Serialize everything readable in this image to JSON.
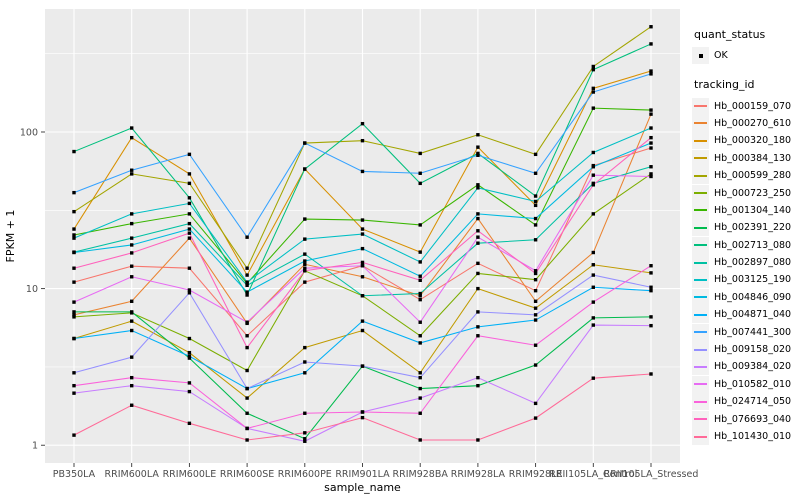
{
  "chart_data": {
    "type": "line",
    "title": "",
    "xlabel": "sample_name",
    "ylabel": "FPKM + 1",
    "y_scale": "log10",
    "y_ticks": [
      1,
      10,
      100
    ],
    "y_minor_ticks": [
      3.162,
      31.62,
      316.2
    ],
    "ylim": [
      0.77,
      610
    ],
    "grid": "on",
    "panel_bg": "#EBEBEB",
    "grid_color": "#FFFFFF",
    "tick_label_color": "#4D4D4D",
    "tick_mark_color": "#333333",
    "marker": {
      "shape": "square",
      "color": "#000000",
      "size": 3.4
    },
    "legend": {
      "position": "right",
      "quant_title": "quant_status",
      "quant_item": "OK",
      "series_title": "tracking_id"
    },
    "categories": [
      "PB350LA",
      "RRIM600LA",
      "RRIM600LE",
      "RRIM600SE",
      "RRIM600PE",
      "RRIM901LA",
      "RRIM928BA",
      "RRIM928LA",
      "RRIM928LE",
      "RRII105LA_Control",
      "RRII105LA_Stressed"
    ],
    "series": [
      {
        "name": "Hb_000159_070",
        "color": "#F8766D",
        "values": [
          11,
          13.9,
          13.5,
          5.0,
          11,
          14,
          8.5,
          14.5,
          9.7,
          61,
          79
        ]
      },
      {
        "name": "Hb_000270_610",
        "color": "#EA8331",
        "values": [
          6.8,
          8.3,
          21,
          6.0,
          14.3,
          11.9,
          9.0,
          28,
          8.3,
          17,
          130
        ]
      },
      {
        "name": "Hb_000320_180",
        "color": "#D89000",
        "values": [
          24,
          92,
          54,
          12.2,
          58,
          24,
          17.1,
          80,
          34,
          190,
          245
        ]
      },
      {
        "name": "Hb_000384_130",
        "color": "#C09B00",
        "values": [
          4.8,
          6.2,
          3.9,
          2.0,
          4.2,
          5.4,
          2.9,
          10,
          7.5,
          14.2,
          12.6
        ]
      },
      {
        "name": "Hb_000599_280",
        "color": "#A3A500",
        "values": [
          31,
          54,
          47,
          13.5,
          85,
          88,
          73,
          96,
          72,
          262,
          470
        ]
      },
      {
        "name": "Hb_000723_250",
        "color": "#7CAE00",
        "values": [
          6.6,
          7.0,
          4.8,
          3.0,
          13,
          9.0,
          5.0,
          12.5,
          11.4,
          30,
          54
        ]
      },
      {
        "name": "Hb_001304_140",
        "color": "#39B600",
        "values": [
          22,
          26,
          30,
          10.8,
          27.8,
          27.4,
          25.5,
          46,
          25.5,
          142,
          138
        ]
      },
      {
        "name": "Hb_002391_220",
        "color": "#00BB4E",
        "values": [
          7.1,
          7.1,
          3.6,
          1.6,
          1.1,
          3.2,
          2.3,
          2.4,
          3.25,
          6.5,
          6.6
        ]
      },
      {
        "name": "Hb_002713_080",
        "color": "#00BF7D",
        "values": [
          75,
          106,
          38,
          9.1,
          58,
          113,
          47,
          73,
          39,
          250,
          365
        ]
      },
      {
        "name": "Hb_002897_080",
        "color": "#00C1A3",
        "values": [
          17.1,
          21,
          26,
          10.5,
          16.6,
          9.0,
          9.3,
          19.5,
          20.5,
          47,
          60
        ]
      },
      {
        "name": "Hb_003125_190",
        "color": "#00BFC4",
        "values": [
          21,
          30,
          35,
          11,
          20.7,
          22.3,
          14.8,
          44,
          36,
          74,
          106
        ]
      },
      {
        "name": "Hb_004846_090",
        "color": "#00BAE0",
        "values": [
          17,
          19,
          24,
          9.5,
          15,
          18,
          12,
          30,
          28,
          60,
          85
        ]
      },
      {
        "name": "Hb_004871_040",
        "color": "#00B0F6",
        "values": [
          4.8,
          5.4,
          3.7,
          2.3,
          2.9,
          6.2,
          4.5,
          5.7,
          6.3,
          10.2,
          9.7
        ]
      },
      {
        "name": "Hb_007441_300",
        "color": "#35A2FF",
        "values": [
          41,
          57,
          72,
          21.3,
          85,
          56,
          54.5,
          71,
          54.5,
          180,
          235
        ]
      },
      {
        "name": "Hb_009158_020",
        "color": "#9590FF",
        "values": [
          2.9,
          3.65,
          9.4,
          2.3,
          3.4,
          3.2,
          2.7,
          7.1,
          6.8,
          12.2,
          10.2
        ]
      },
      {
        "name": "Hb_009384_020",
        "color": "#C77CFF",
        "values": [
          2.15,
          2.4,
          2.2,
          1.28,
          1.06,
          1.63,
          2.0,
          2.7,
          1.85,
          5.85,
          5.8
        ]
      },
      {
        "name": "Hb_010582_010",
        "color": "#E76BF3",
        "values": [
          8.2,
          11.9,
          9.8,
          6.1,
          13.5,
          14,
          6.1,
          21.3,
          13,
          53,
          52
        ]
      },
      {
        "name": "Hb_024714_050",
        "color": "#FA62DB",
        "values": [
          2.4,
          2.7,
          2.5,
          1.28,
          1.6,
          1.63,
          1.6,
          5.0,
          4.35,
          8.2,
          14
        ]
      },
      {
        "name": "Hb_076693_040",
        "color": "#FF62BC",
        "values": [
          13.5,
          16.9,
          22.6,
          4.2,
          13,
          14.7,
          11.3,
          23.4,
          12.5,
          46,
          92
        ]
      },
      {
        "name": "Hb_101430_010",
        "color": "#FF6A98",
        "values": [
          1.16,
          1.8,
          1.38,
          1.08,
          1.2,
          1.5,
          1.08,
          1.08,
          1.49,
          2.68,
          2.85
        ]
      }
    ]
  }
}
